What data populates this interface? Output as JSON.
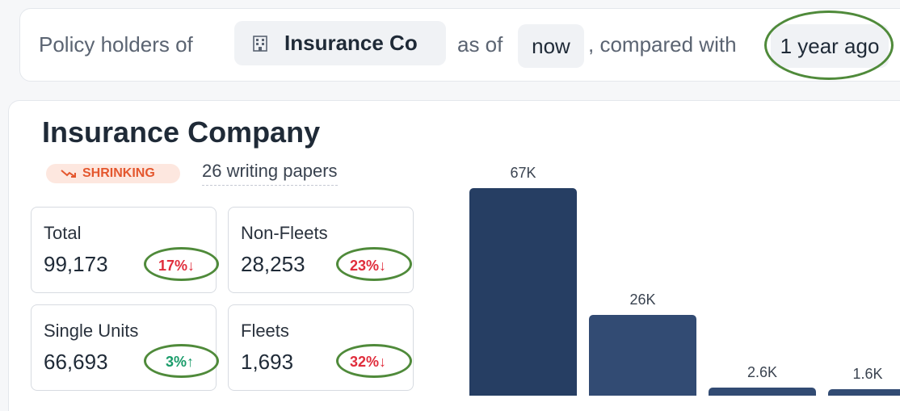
{
  "query": {
    "prefix": "Policy holders of",
    "company": "Insurance Co",
    "as_of_label": "as of",
    "as_of_value": "now",
    "compared_label": ", compared with",
    "compared_value": "1 year ago"
  },
  "card": {
    "title": "Insurance Company",
    "status_badge": "SHRINKING",
    "writing_papers": "26 writing papers",
    "stats": [
      {
        "label": "Total",
        "value": "99,173",
        "change": "17%",
        "direction": "down"
      },
      {
        "label": "Non-Fleets",
        "value": "28,253",
        "change": "23%",
        "direction": "down"
      },
      {
        "label": "Single Units",
        "value": "66,693",
        "change": "3%",
        "direction": "up"
      },
      {
        "label": "Fleets",
        "value": "1,693",
        "change": "32%",
        "direction": "down"
      }
    ]
  },
  "chart_data": {
    "type": "bar",
    "categories": [
      "",
      "",
      "",
      ""
    ],
    "values": [
      67000,
      26000,
      2600,
      1600
    ],
    "data_labels": [
      "67K",
      "26K",
      "2.6K",
      "1.6K"
    ],
    "colors": [
      "#263e63",
      "#324b73",
      "#324b73",
      "#324b73"
    ]
  },
  "colors": {
    "annotation_ring": "#4f8a3a",
    "decrease": "#e02d3c",
    "increase": "#1a9c6a",
    "badge_bg": "#fde7df",
    "badge_text": "#e4572e"
  }
}
